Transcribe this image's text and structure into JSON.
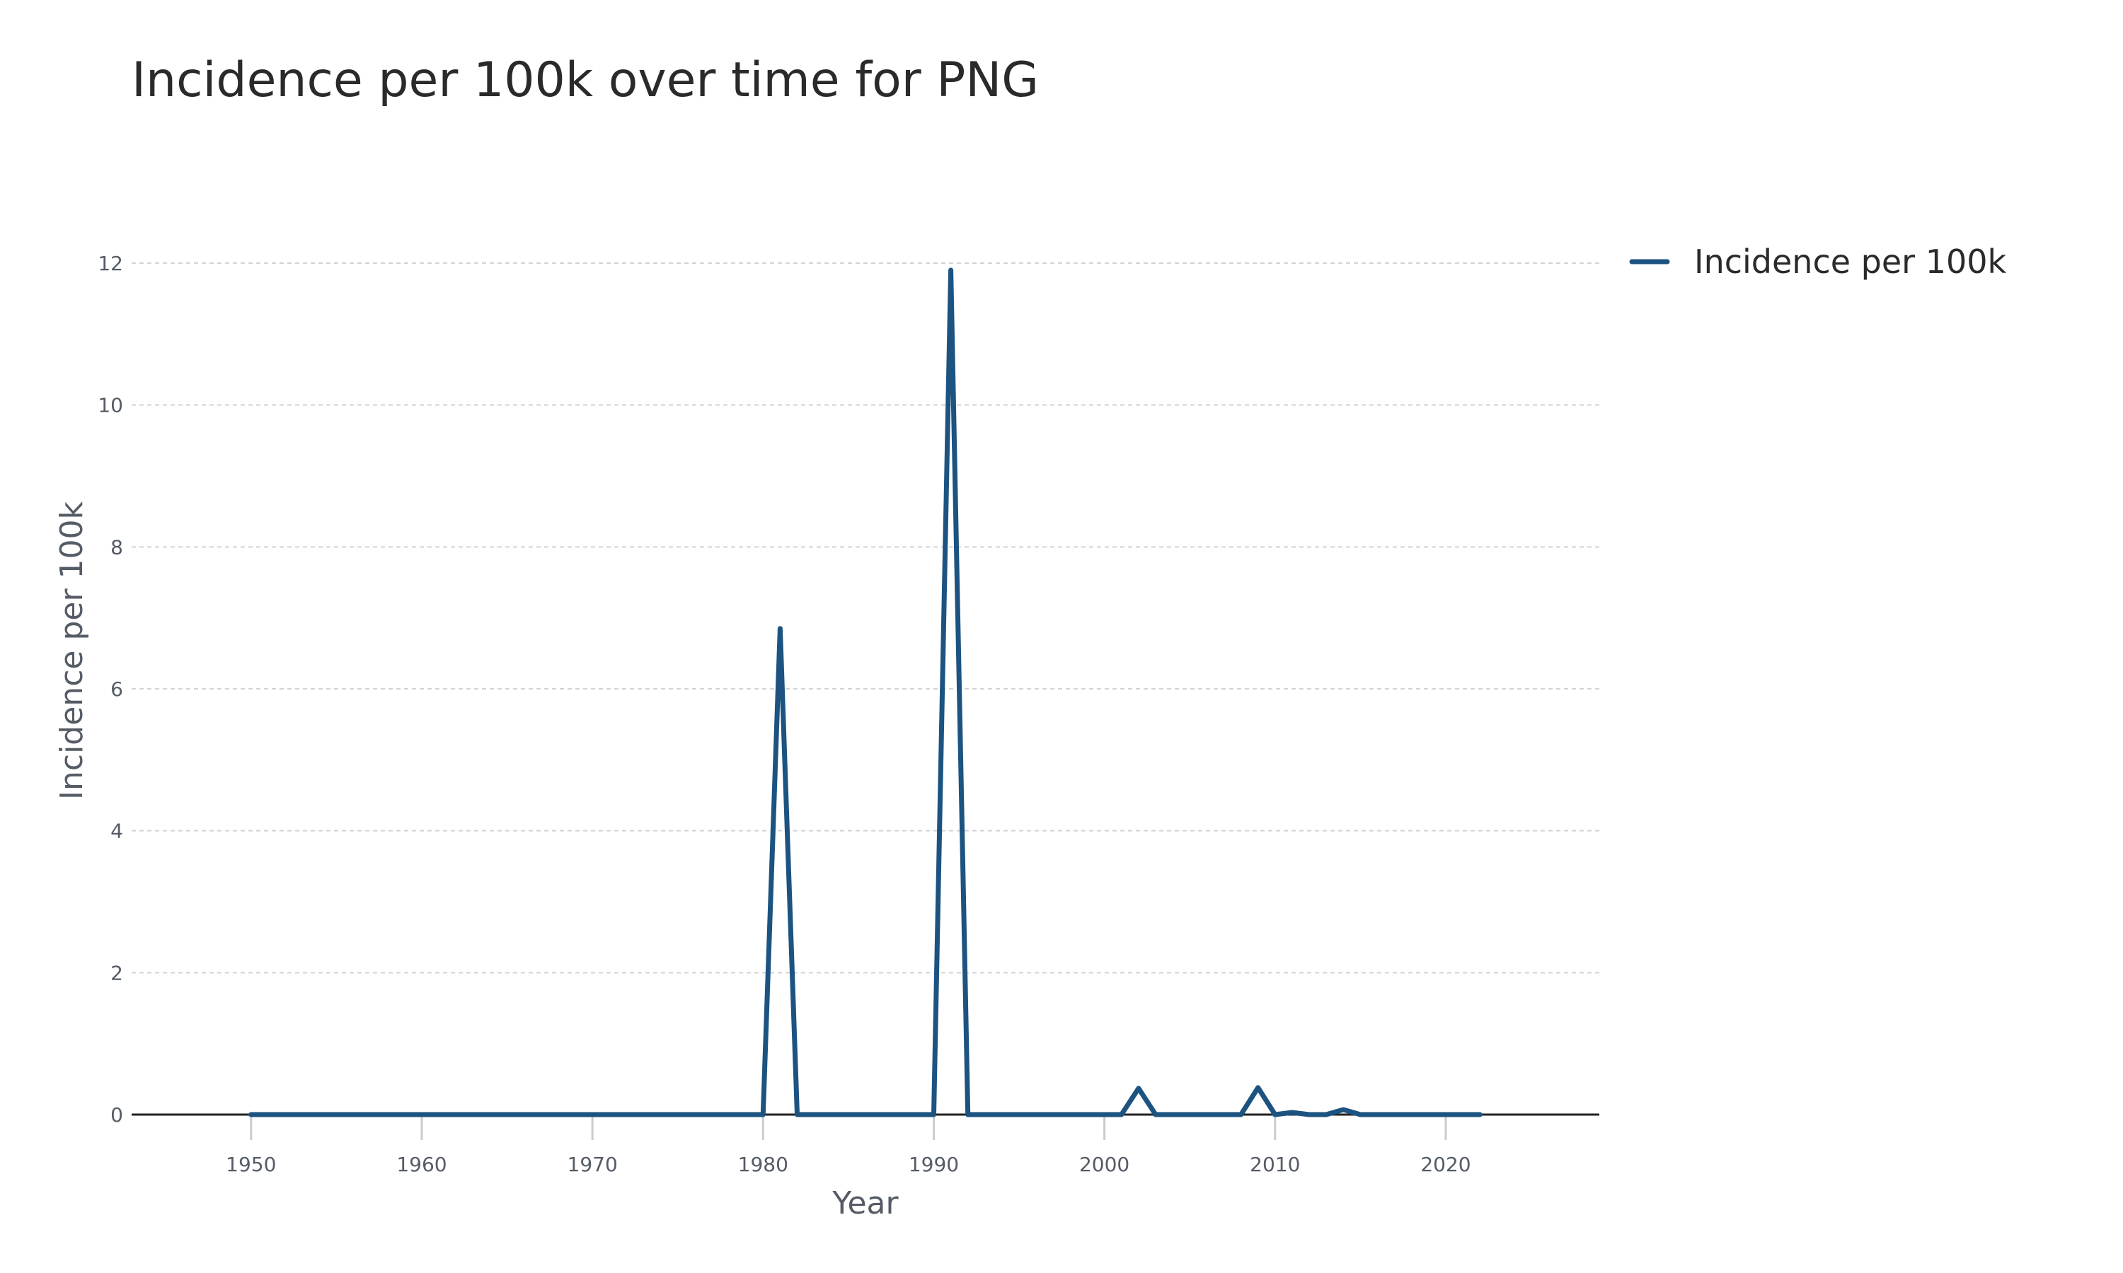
{
  "chart_data": {
    "type": "line",
    "title": "Incidence per 100k over time for PNG",
    "xlabel": "Year",
    "ylabel": "Incidence per 100k",
    "xlim": [
      1943,
      2029
    ],
    "ylim": [
      0,
      12
    ],
    "x_ticks": [
      1950,
      1960,
      1970,
      1980,
      1990,
      2000,
      2010,
      2020
    ],
    "y_ticks": [
      0,
      2,
      4,
      6,
      8,
      10,
      12
    ],
    "grid": "horizontal",
    "legend": "top-right",
    "series": [
      {
        "name": "Incidence per 100k",
        "color": "#1c5380",
        "x": [
          1950,
          1980,
          1981,
          1982,
          1990,
          1991,
          1992,
          2001,
          2002,
          2003,
          2008,
          2009,
          2010,
          2011,
          2012,
          2013,
          2014,
          2015,
          2022
        ],
        "y": [
          0,
          0,
          6.85,
          0,
          0,
          11.9,
          0,
          0,
          0.37,
          0,
          0,
          0.38,
          0,
          0.03,
          0,
          0,
          0.07,
          0,
          0
        ]
      }
    ]
  }
}
